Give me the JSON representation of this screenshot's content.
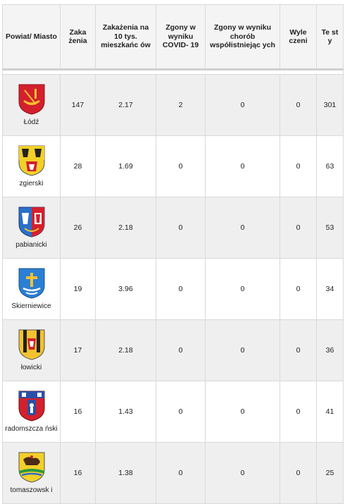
{
  "table": {
    "headers": [
      "Powiat/ Miasto",
      "Zaka żenia",
      "Zakażenia na 10 tys. mieszkańc ów",
      "Zgony w wyniku COVID- 19",
      "Zgony w wyniku chorób współistniejąc ych",
      "Wyle czeni",
      "Te st y"
    ],
    "rows": [
      {
        "name": "Łódź",
        "crest": "lodz-crest",
        "infections": "147",
        "per10k": "2.17",
        "covid_deaths": "2",
        "comorbid_deaths": "0",
        "recovered": "0",
        "tests": "301"
      },
      {
        "name": "zgierski",
        "crest": "zgierski-crest",
        "infections": "28",
        "per10k": "1.69",
        "covid_deaths": "0",
        "comorbid_deaths": "0",
        "recovered": "0",
        "tests": "63"
      },
      {
        "name": "pabianicki",
        "crest": "pabianicki-crest",
        "infections": "26",
        "per10k": "2.18",
        "covid_deaths": "0",
        "comorbid_deaths": "0",
        "recovered": "0",
        "tests": "53"
      },
      {
        "name": "Skierniewice",
        "crest": "skierniewice-crest",
        "infections": "19",
        "per10k": "3.96",
        "covid_deaths": "0",
        "comorbid_deaths": "0",
        "recovered": "0",
        "tests": "34"
      },
      {
        "name": "łowicki",
        "crest": "lowicki-crest",
        "infections": "17",
        "per10k": "2.18",
        "covid_deaths": "0",
        "comorbid_deaths": "0",
        "recovered": "0",
        "tests": "36"
      },
      {
        "name": "radomszcza ński",
        "crest": "radomszczanski-crest",
        "infections": "16",
        "per10k": "1.43",
        "covid_deaths": "0",
        "comorbid_deaths": "0",
        "recovered": "0",
        "tests": "41"
      },
      {
        "name": "tomaszowsk i",
        "crest": "tomaszowski-crest",
        "infections": "16",
        "per10k": "1.38",
        "covid_deaths": "0",
        "comorbid_deaths": "0",
        "recovered": "0",
        "tests": "25"
      }
    ]
  }
}
